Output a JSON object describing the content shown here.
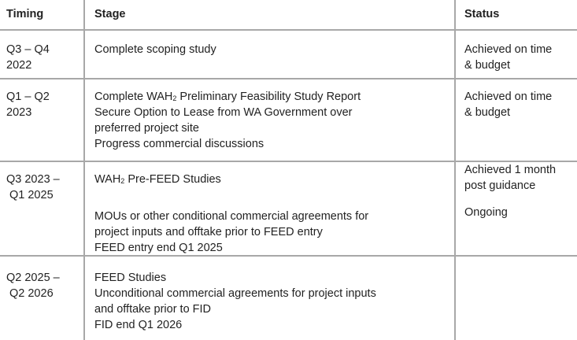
{
  "table": {
    "headers": [
      "Timing",
      "Stage",
      "Status"
    ],
    "rows": [
      {
        "timing": [
          "Q3 – Q4",
          "2022"
        ],
        "stage": [
          "Complete scoping study"
        ],
        "status": [
          "Achieved on time",
          "& budget"
        ]
      },
      {
        "timing": [
          "Q1 – Q2",
          "2023"
        ],
        "stage_wah_prefix": "Complete WAH",
        "stage_sub": "2",
        "stage_wah_suffix": " Preliminary Feasibility Study Report",
        "stage": [
          "Secure Option to Lease from WA Government over",
          "preferred project site",
          "Progress commercial discussions"
        ],
        "status": [
          "Achieved on time",
          "& budget"
        ]
      },
      {
        "timing": [
          "Q3 2023 –",
          "Q1 2025"
        ],
        "stage_wah_prefix": "WAH",
        "stage_sub": "2",
        "stage_wah_suffix": " Pre-FEED Studies",
        "stage": [
          "MOUs or other conditional commercial agreements for",
          "project inputs and offtake prior to FEED entry",
          "FEED entry end Q1 2025"
        ],
        "status": [
          "Achieved 1 month",
          "post guidance",
          "Ongoing"
        ]
      },
      {
        "timing": [
          "Q2 2025 –",
          "Q2 2026"
        ],
        "stage": [
          "FEED Studies",
          "Unconditional commercial agreements for project inputs",
          "and offtake prior to FID",
          "FID end Q1 2026"
        ],
        "status": []
      }
    ]
  }
}
